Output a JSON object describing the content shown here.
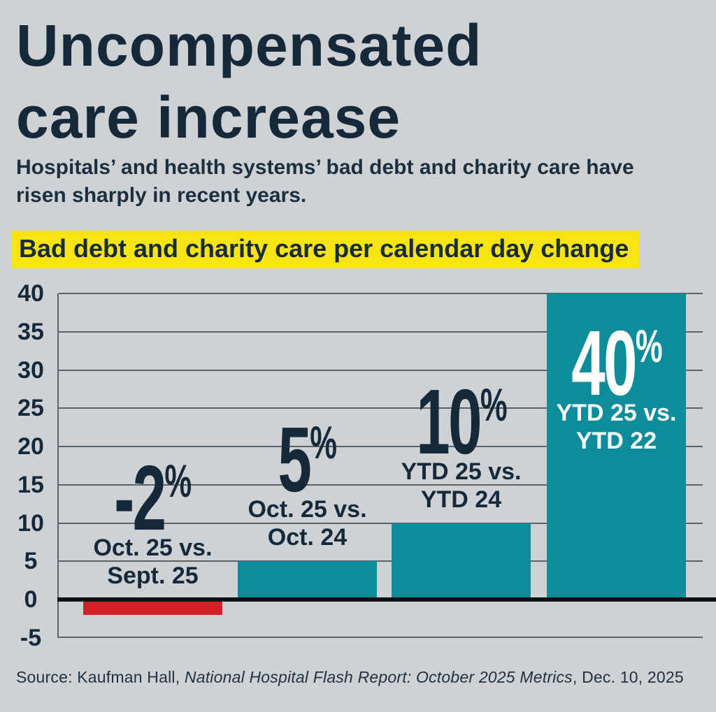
{
  "page": {
    "title_lines": [
      "Uncompensated",
      "care increase"
    ],
    "subtitle_lines": [
      "Hospitals’ and health systems’ bad debt and charity care have",
      "risen sharply in recent years."
    ],
    "highlight_label": "Bad debt and charity care per calendar day change",
    "source_prefix": "Source: Kaufman Hall, ",
    "source_italic": "National Hospital Flash Report: October 2025 Metrics",
    "source_suffix": ", Dec. 10, 2025"
  },
  "colors": {
    "background": "#ced2d4",
    "navy": "#16293a",
    "teal": "#0d8d9b",
    "red": "#d02128",
    "highlight_yellow": "#f7e412",
    "gridline": "#59646c",
    "zero_line": "#0b0f14"
  },
  "chart_data": {
    "type": "bar",
    "title": "Bad debt and charity care per calendar day change",
    "xlabel": "",
    "ylabel": "",
    "ylim": [
      -5,
      40
    ],
    "grid": true,
    "legend": false,
    "y_ticks": [
      40,
      35,
      30,
      25,
      20,
      15,
      10,
      5,
      0,
      -5
    ],
    "categories": [
      [
        "Oct. 25 vs.",
        "Sept. 25"
      ],
      [
        "Oct. 25 vs.",
        "Oct. 24"
      ],
      [
        "YTD 25 vs.",
        "YTD 24"
      ],
      [
        "YTD 25 vs.",
        "YTD 22"
      ]
    ],
    "values": [
      -2,
      5,
      10,
      40
    ],
    "bars": [
      {
        "value": -2,
        "value_label": "-2",
        "unit": "%",
        "sub_lines": [
          "Oct. 25 vs.",
          "Sept. 25"
        ],
        "color": "#d02128",
        "label_color": "navy",
        "label_inside": false
      },
      {
        "value": 5,
        "value_label": "5",
        "unit": "%",
        "sub_lines": [
          "Oct. 25 vs.",
          "Oct. 24"
        ],
        "color": "#0d8d9b",
        "label_color": "navy",
        "label_inside": false
      },
      {
        "value": 10,
        "value_label": "10",
        "unit": "%",
        "sub_lines": [
          "YTD 25 vs.",
          "YTD 24"
        ],
        "color": "#0d8d9b",
        "label_color": "navy",
        "label_inside": false
      },
      {
        "value": 40,
        "value_label": "40",
        "unit": "%",
        "sub_lines": [
          "YTD 25 vs.",
          "YTD 22"
        ],
        "color": "#0d8d9b",
        "label_color": "white",
        "label_inside": true
      }
    ]
  }
}
